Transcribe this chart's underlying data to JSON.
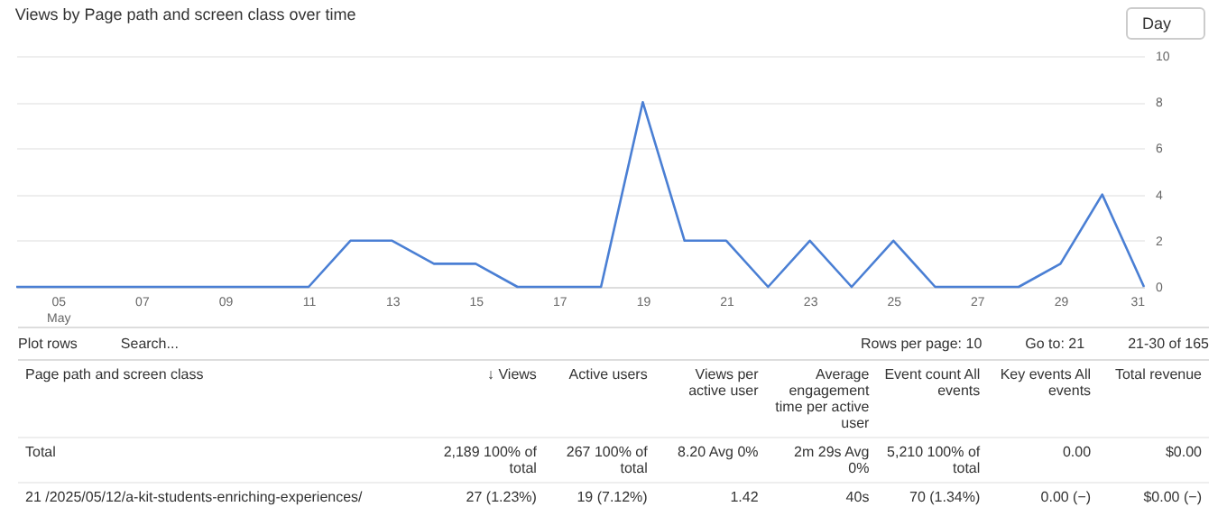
{
  "chart_data": [
    {
      "type": "line",
      "title": "Views by Page path and screen class over time",
      "annotations": [
        "Day"
      ],
      "color": "#4a7fd4",
      "x": [
        "--05-04",
        "--05-05",
        "--05-06",
        "--05-07",
        "--05-08",
        "--05-09",
        "--05-10",
        "--05-11",
        "--05-12",
        "--05-13",
        "--05-14",
        "--05-15",
        "--05-16",
        "--05-17",
        "--05-18",
        "--05-19",
        "--05-20",
        "--05-21",
        "--05-22",
        "--05-23",
        "--05-24",
        "--05-25",
        "--05-26",
        "--05-27",
        "--05-28",
        "--05-29",
        "--05-30",
        "--05-31"
      ],
      "values": [
        0,
        0,
        0,
        0,
        0,
        0,
        0,
        0,
        2,
        2,
        1,
        1,
        0,
        0,
        0,
        8,
        2,
        2,
        0,
        2,
        0,
        2,
        0,
        0,
        0,
        1,
        4,
        0
      ],
      "xlim": [
        "--05-04",
        "--05-31"
      ],
      "xticks": [
        {
          "value": "--05-05",
          "label": "05\nMay"
        },
        {
          "value": "--05-07",
          "label": "07"
        },
        {
          "value": "--05-09",
          "label": "09"
        },
        {
          "value": "--05-11",
          "label": "11"
        },
        {
          "value": "--05-13",
          "label": "13"
        },
        {
          "value": "--05-15",
          "label": "15"
        },
        {
          "value": "--05-17",
          "label": "17"
        },
        {
          "value": "--05-19",
          "label": "19"
        },
        {
          "value": "--05-21",
          "label": "21"
        },
        {
          "value": "--05-23",
          "label": "23"
        },
        {
          "value": "--05-25",
          "label": "25"
        },
        {
          "value": "--05-27",
          "label": "27"
        },
        {
          "value": "--05-29",
          "label": "29"
        },
        {
          "value": "--05-31",
          "label": "31"
        }
      ],
      "ylim": [
        0,
        10
      ],
      "yticks": [
        0,
        2,
        4,
        6,
        8,
        10
      ],
      "grid": "y",
      "marker": "none",
      "line_style": "solid"
    },
    {
      "type": "other",
      "annotations": [
        "Plot rows",
        "Search...",
        "Rows per page: 10",
        "Go to: 21",
        "21-30 of 165",
        "Page path and screen class",
        "↓ Views",
        "Active users",
        "Views per active user",
        "Average engagement time per active user",
        "Event count All events",
        "Key events All events",
        "Total revenue",
        "Total",
        "2,189 100% of total",
        "267 100% of total",
        "8.20 Avg 0%",
        "2m 29s Avg 0%",
        "5,210 100% of total",
        "0.00",
        "$0.00",
        "21 /2025/05/12/a-kit-students-enriching-experiences/",
        "27 (1.23%)",
        "19 (7.12%)",
        "1.42",
        "40s",
        "70 (1.34%)",
        "0.00 (−)",
        "$0.00 (−)"
      ]
    }
  ]
}
